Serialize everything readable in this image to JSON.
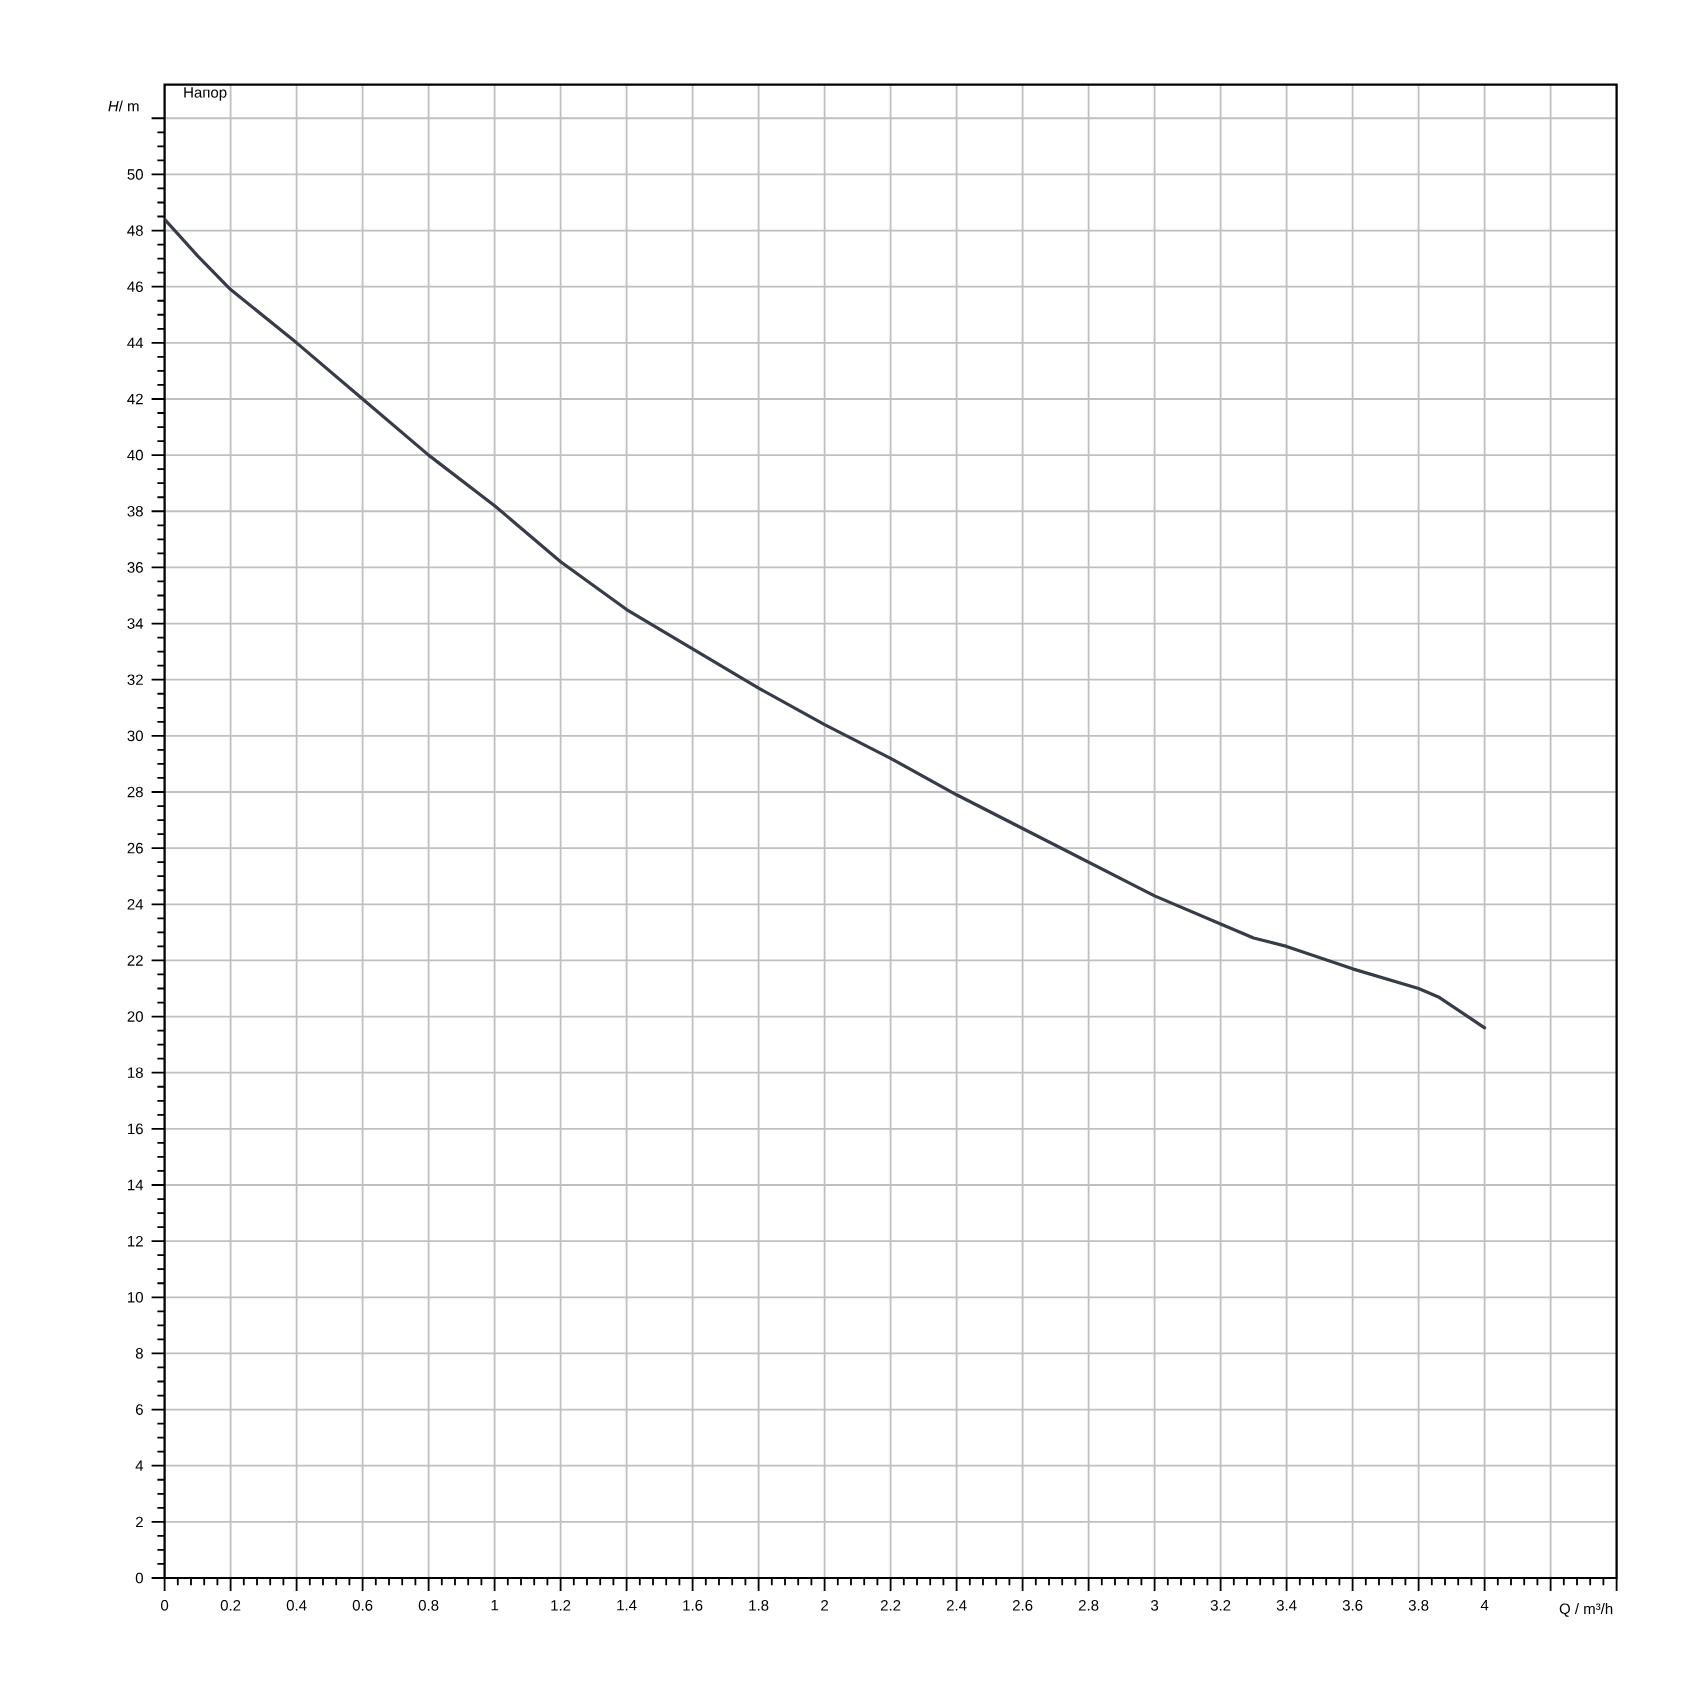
{
  "chart_data": {
    "type": "line",
    "title": "Напор",
    "xlabel": "Q / m³/h",
    "ylabel": "*H*/ m",
    "x": [
      0,
      0.1,
      0.2,
      0.4,
      0.6,
      0.8,
      1,
      1.2,
      1.4,
      1.6,
      1.8,
      2,
      2.2,
      2.4,
      2.6,
      2.8,
      3,
      3.2,
      3.3,
      3.4,
      3.6,
      3.8,
      3.86,
      4
    ],
    "series": [
      {
        "color": "#363c48",
        "values": [
          48.4,
          47.1,
          45.9,
          44.0,
          42.0,
          40.0,
          38.2,
          36.2,
          34.5,
          33.1,
          31.7,
          30.4,
          29.2,
          27.9,
          26.7,
          25.5,
          24.3,
          23.3,
          22.8,
          22.5,
          21.7,
          21.0,
          20.7,
          19.6
        ]
      }
    ],
    "xlim": [
      0,
      4.4
    ],
    "ylim": [
      0,
      53.2
    ],
    "xticks": [
      0,
      0.2,
      0.4,
      0.6,
      0.8,
      1,
      1.2,
      1.4,
      1.6,
      1.8,
      2,
      2.2,
      2.4,
      2.6,
      2.8,
      3,
      3.2,
      3.4,
      3.6,
      3.8,
      4,
      {
        "value": 4.2,
        "label": null
      },
      {
        "value": 4.4,
        "label": null
      }
    ],
    "yticks": [
      0,
      2,
      4,
      6,
      8,
      10,
      12,
      14,
      16,
      18,
      20,
      22,
      24,
      26,
      28,
      30,
      32,
      34,
      36,
      38,
      40,
      42,
      44,
      46,
      48,
      50,
      {
        "value": 52,
        "label": null
      }
    ],
    "grid": true
  }
}
